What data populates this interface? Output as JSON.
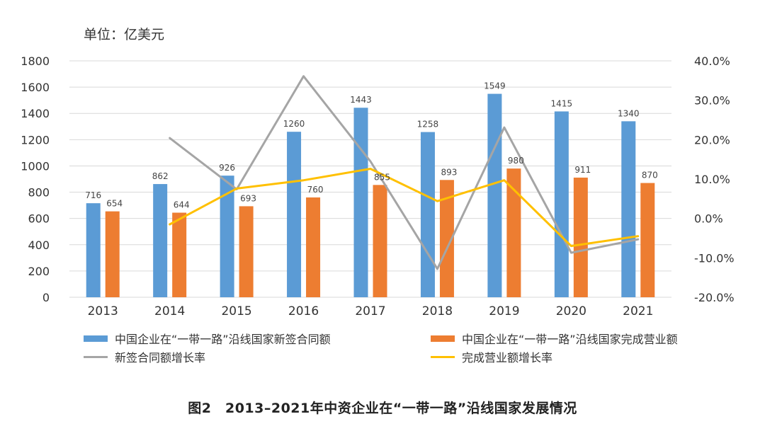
{
  "unit_label": "单位：亿美元",
  "caption": "图2　2013–2021年中资企业在“一带一路”沿线国家发展情况",
  "colors": {
    "blue": "#5b9bd5",
    "orange": "#ed7d31",
    "gray": "#a5a5a5",
    "yellow": "#ffc000",
    "grid": "#d9d9d9"
  },
  "legend": [
    {
      "label": "中国企业在“一带一路”沿线国家新签合同额",
      "kind": "bar",
      "color": "#5b9bd5"
    },
    {
      "label": "中国企业在“一带一路”沿线国家完成营业额",
      "kind": "bar",
      "color": "#ed7d31"
    },
    {
      "label": "新签合同额增长率",
      "kind": "line",
      "color": "#a5a5a5"
    },
    {
      "label": "完成营业额增长率",
      "kind": "line",
      "color": "#ffc000"
    }
  ],
  "chart_data": {
    "type": "bar",
    "categories": [
      "2013",
      "2014",
      "2015",
      "2016",
      "2017",
      "2018",
      "2019",
      "2020",
      "2021"
    ],
    "y_left": {
      "min": 0,
      "max": 1800,
      "ticks": [
        "0",
        "200",
        "400",
        "600",
        "800",
        "1000",
        "1200",
        "1400",
        "1600",
        "1800"
      ]
    },
    "y_right": {
      "min": -20,
      "max": 40,
      "ticks": [
        "-20.0%",
        "-10.0%",
        "0.0%",
        "10.0%",
        "20.0%",
        "30.0%",
        "40.0%"
      ]
    },
    "grid": true,
    "legend_position": "bottom",
    "series": [
      {
        "name": "中国企业在“一带一路”沿线国家新签合同额",
        "type": "bar",
        "axis": "left",
        "values": [
          716,
          862,
          926,
          1260,
          1443,
          1258,
          1549,
          1415,
          1340
        ]
      },
      {
        "name": "中国企业在“一带一路”沿线国家完成营业额",
        "type": "bar",
        "axis": "left",
        "values": [
          654,
          644,
          693,
          760,
          855,
          893,
          980,
          911,
          870
        ]
      },
      {
        "name": "新签合同额增长率",
        "type": "line",
        "axis": "right",
        "values": [
          null,
          20.4,
          7.4,
          36.1,
          14.5,
          -12.8,
          23.1,
          -8.7,
          -5.3
        ]
      },
      {
        "name": "完成营业额增长率",
        "type": "line",
        "axis": "right",
        "values": [
          null,
          -1.5,
          7.6,
          9.7,
          12.6,
          4.4,
          9.7,
          -7.0,
          -4.5
        ]
      }
    ]
  }
}
